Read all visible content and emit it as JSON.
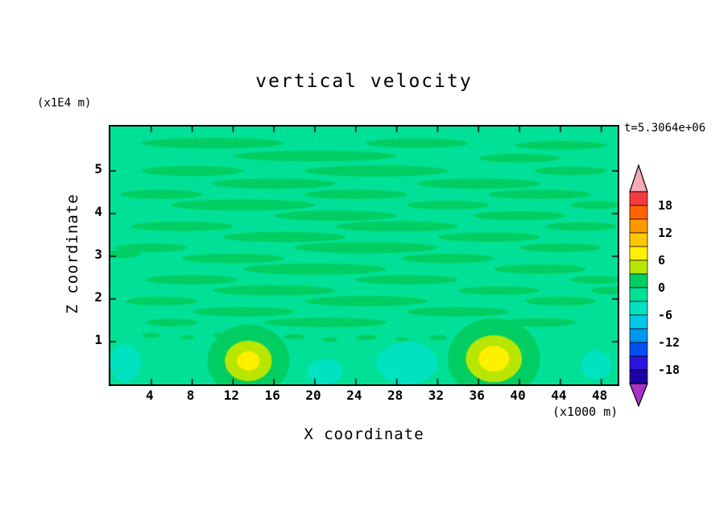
{
  "chart_data": {
    "type": "heatmap",
    "title": "vertical velocity",
    "xlabel": "X coordinate",
    "ylabel": "Z coordinate",
    "x_unit": "(x1000 m)",
    "z_unit": "(x1E4 m)",
    "annotation": "t=5.3064e+06",
    "grid": false,
    "x_range": [
      0,
      49.6
    ],
    "z_range": [
      0,
      6.04
    ],
    "x_ticks": [
      4,
      8,
      12,
      16,
      20,
      24,
      28,
      32,
      36,
      40,
      44,
      48
    ],
    "z_ticks": [
      1,
      2,
      3,
      4,
      5
    ],
    "field": {
      "base_color": "#00E096",
      "streak_color": "#00CE62",
      "teal_color": "#00E2C0",
      "streaks": [
        [
          10,
          5.65,
          14,
          0.25
        ],
        [
          30,
          5.65,
          10,
          0.22
        ],
        [
          44,
          5.6,
          9,
          0.2
        ],
        [
          20,
          5.35,
          16,
          0.25
        ],
        [
          40,
          5.3,
          8,
          0.2
        ],
        [
          8,
          5.0,
          10,
          0.24
        ],
        [
          26,
          5.0,
          14,
          0.26
        ],
        [
          45,
          5.0,
          7,
          0.2
        ],
        [
          16,
          4.7,
          12,
          0.24
        ],
        [
          36,
          4.7,
          12,
          0.24
        ],
        [
          5,
          4.45,
          8,
          0.22
        ],
        [
          24,
          4.45,
          10,
          0.22
        ],
        [
          42,
          4.45,
          10,
          0.22
        ],
        [
          13,
          4.2,
          14,
          0.26
        ],
        [
          33,
          4.2,
          8,
          0.2
        ],
        [
          47.5,
          4.2,
          5,
          0.18
        ],
        [
          22,
          3.95,
          12,
          0.24
        ],
        [
          40,
          3.95,
          9,
          0.22
        ],
        [
          7,
          3.7,
          10,
          0.22
        ],
        [
          28,
          3.7,
          12,
          0.24
        ],
        [
          46,
          3.7,
          7,
          0.2
        ],
        [
          17,
          3.45,
          12,
          0.24
        ],
        [
          37,
          3.45,
          10,
          0.22
        ],
        [
          4,
          3.2,
          7,
          0.2
        ],
        [
          25,
          3.2,
          14,
          0.26
        ],
        [
          44,
          3.2,
          8,
          0.2
        ],
        [
          12,
          2.95,
          10,
          0.22
        ],
        [
          33,
          2.95,
          9,
          0.22
        ],
        [
          1,
          3.05,
          4,
          0.18
        ],
        [
          20,
          2.7,
          14,
          0.26
        ],
        [
          42,
          2.7,
          9,
          0.22
        ],
        [
          8,
          2.45,
          9,
          0.22
        ],
        [
          29,
          2.45,
          10,
          0.22
        ],
        [
          47.5,
          2.45,
          5,
          0.18
        ],
        [
          16,
          2.2,
          12,
          0.24
        ],
        [
          38,
          2.2,
          8,
          0.2
        ],
        [
          49,
          2.2,
          4,
          0.18
        ],
        [
          5,
          1.95,
          7,
          0.2
        ],
        [
          25,
          1.95,
          12,
          0.24
        ],
        [
          44,
          1.95,
          7,
          0.2
        ],
        [
          13,
          1.7,
          10,
          0.22
        ],
        [
          34,
          1.7,
          10,
          0.22
        ],
        [
          21,
          1.45,
          12,
          0.22
        ],
        [
          42,
          1.45,
          7,
          0.2
        ],
        [
          6,
          1.45,
          5,
          0.18
        ],
        [
          4,
          1.15,
          1.8,
          0.12
        ],
        [
          7.5,
          1.1,
          1.4,
          0.1
        ],
        [
          11,
          1.15,
          2,
          0.12
        ],
        [
          14.5,
          1.08,
          1.5,
          0.1
        ],
        [
          18,
          1.12,
          2,
          0.12
        ],
        [
          21.5,
          1.05,
          1.5,
          0.1
        ],
        [
          25,
          1.1,
          2,
          0.12
        ],
        [
          28.5,
          1.06,
          1.4,
          0.1
        ],
        [
          32,
          1.1,
          1.8,
          0.12
        ],
        [
          35.5,
          1.05,
          1.4,
          0.1
        ]
      ],
      "teal_patches": [
        [
          29,
          0.5,
          6,
          1.0
        ],
        [
          21,
          0.3,
          3.5,
          0.6
        ],
        [
          1.5,
          0.5,
          3,
          0.9
        ],
        [
          47.5,
          0.45,
          3,
          0.7
        ]
      ],
      "blobs": [
        {
          "x": 13.5,
          "z": 0.55,
          "rings": [
            [
              8,
              1.7,
              "#00CE62"
            ],
            [
              4.6,
              0.95,
              "#B9E600"
            ],
            [
              2.2,
              0.45,
              "#FFF000"
            ]
          ]
        },
        {
          "x": 37.5,
          "z": 0.6,
          "rings": [
            [
              9,
              1.9,
              "#00CE62"
            ],
            [
              5.5,
              1.1,
              "#B9E600"
            ],
            [
              3.0,
              0.6,
              "#FFF000"
            ]
          ]
        }
      ]
    },
    "colorbar": {
      "position": "right",
      "level_max": 21,
      "level_min": -21,
      "level_step": 3,
      "band_colors": [
        "#F23C3C",
        "#FF6400",
        "#FF9800",
        "#FFC800",
        "#FFF000",
        "#B9E600",
        "#00CE62",
        "#00E096",
        "#00E2C0",
        "#00C8E6",
        "#0096F0",
        "#0050F0",
        "#2814DC",
        "#1E00A0"
      ],
      "arrow_top_color": "#F2AAB9",
      "arrow_bottom_color": "#A832C8",
      "labels": [
        "18",
        "12",
        "6",
        "0",
        "-6",
        "-12",
        "-18"
      ]
    }
  }
}
